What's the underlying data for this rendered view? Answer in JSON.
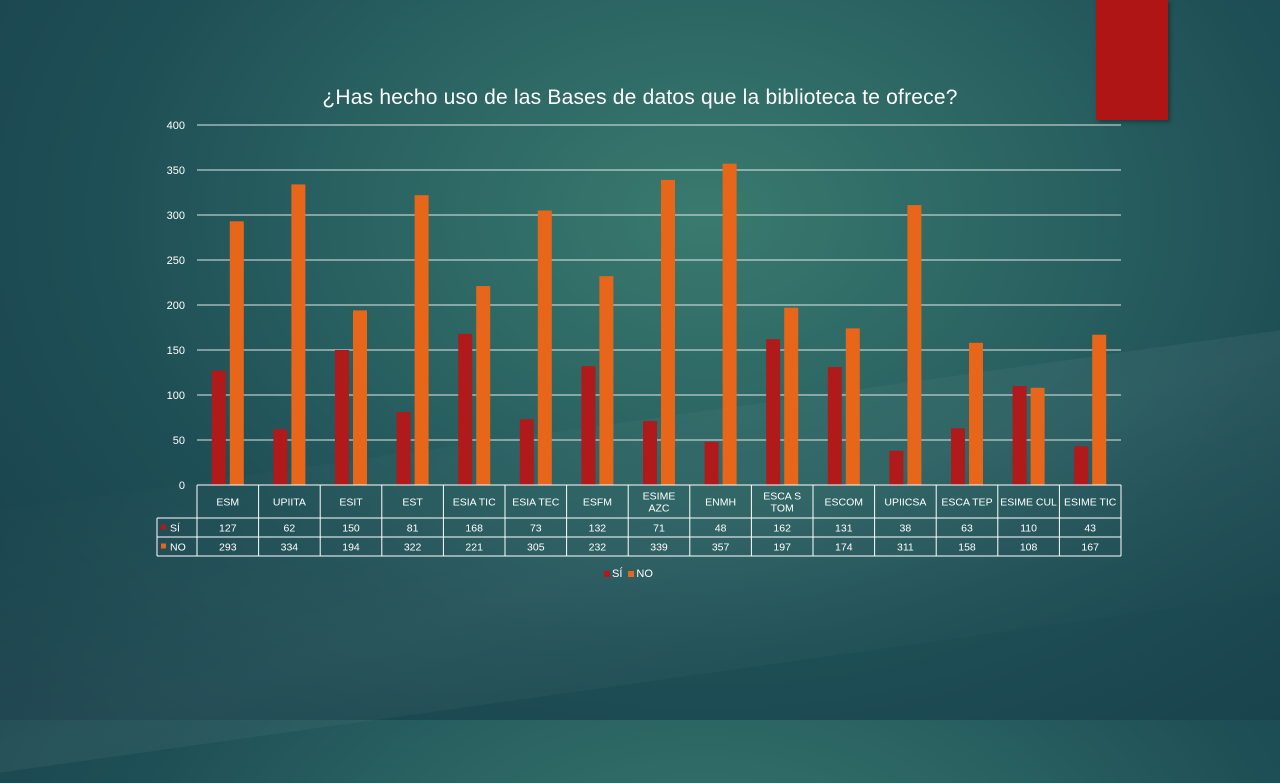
{
  "chart_data": {
    "type": "bar",
    "title": "¿Has hecho uso de las Bases de datos que la biblioteca te ofrece?",
    "categories": [
      "ESM",
      "UPIITA",
      "ESIT",
      "EST",
      "ESIA TIC",
      "ESIA TEC",
      "ESFM",
      "ESIME AZC",
      "ENMH",
      "ESCA S TOM",
      "ESCOM",
      "UPIICSA",
      "ESCA TEP",
      "ESIME CUL",
      "ESIME TIC"
    ],
    "category_lines": [
      [
        "ESM"
      ],
      [
        "UPIITA"
      ],
      [
        "ESIT"
      ],
      [
        "EST"
      ],
      [
        "ESIA TIC"
      ],
      [
        "ESIA TEC"
      ],
      [
        "ESFM"
      ],
      [
        "ESIME",
        "AZC"
      ],
      [
        "ENMH"
      ],
      [
        "ESCA S",
        "TOM"
      ],
      [
        "ESCOM"
      ],
      [
        "UPIICSA"
      ],
      [
        "ESCA TEP"
      ],
      [
        "ESIME CUL"
      ],
      [
        "ESIME TIC"
      ]
    ],
    "series": [
      {
        "name": "SÍ",
        "color": "#b01a1a",
        "values": [
          127,
          62,
          150,
          81,
          168,
          73,
          132,
          71,
          48,
          162,
          131,
          38,
          63,
          110,
          43
        ]
      },
      {
        "name": "NO",
        "color": "#e8661a",
        "values": [
          293,
          334,
          194,
          322,
          221,
          305,
          232,
          339,
          357,
          197,
          174,
          311,
          158,
          108,
          167
        ]
      }
    ],
    "ylim": [
      0,
      400
    ],
    "yticks": [
      0,
      50,
      100,
      150,
      200,
      250,
      300,
      350,
      400
    ],
    "grid": true,
    "data_table": true,
    "legend_position": "bottom"
  },
  "colors": {
    "accent_block": "#b01515"
  }
}
